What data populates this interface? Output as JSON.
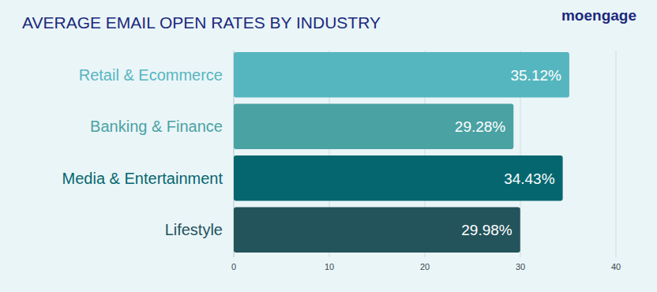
{
  "chart_data": {
    "type": "bar",
    "title": "AVERAGE EMAIL OPEN RATES BY INDUSTRY",
    "annotations": [
      "moengage"
    ],
    "orientation": "horizontal",
    "categories": [
      "Retail & Ecommerce",
      "Banking & Finance",
      "Media & Entertainment",
      "Lifestyle"
    ],
    "values": [
      35.12,
      29.28,
      34.43,
      29.98
    ],
    "value_labels": [
      "35.12%",
      "29.28%",
      "34.43%",
      "29.98%"
    ],
    "colors": [
      "#56b6c0",
      "#4aa2a3",
      "#05666f",
      "#23535b"
    ],
    "xlim": [
      0,
      40
    ],
    "xticks": [
      0,
      10,
      20,
      30,
      40
    ],
    "grid": true,
    "data_labels": true
  }
}
